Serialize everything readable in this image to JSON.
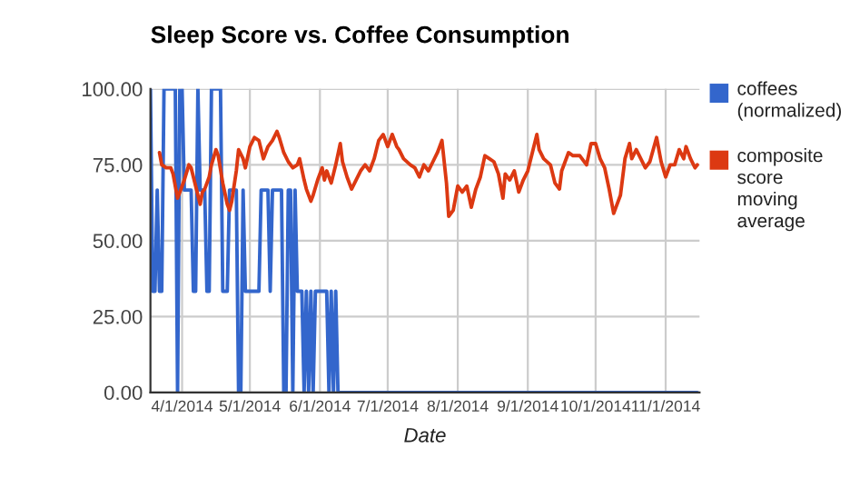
{
  "chart_data": {
    "type": "line",
    "title": "Sleep Score vs. Coffee Consumption",
    "xlabel": "Date",
    "xlim": [
      "2014-03-18",
      "2014-11-16"
    ],
    "xticks": [
      {
        "value": "2014-04-01",
        "label": "4/1/2014"
      },
      {
        "value": "2014-05-01",
        "label": "5/1/2014"
      },
      {
        "value": "2014-06-01",
        "label": "6/1/2014"
      },
      {
        "value": "2014-07-01",
        "label": "7/1/2014"
      },
      {
        "value": "2014-08-01",
        "label": "8/1/2014"
      },
      {
        "value": "2014-09-01",
        "label": "9/1/2014"
      },
      {
        "value": "2014-10-01",
        "label": "10/1/2014"
      },
      {
        "value": "2014-11-01",
        "label": "11/1/2014"
      }
    ],
    "ylim": [
      0,
      100
    ],
    "yticks": [
      {
        "value": 0,
        "label": "0.00"
      },
      {
        "value": 25,
        "label": "25.00"
      },
      {
        "value": 50,
        "label": "50.00"
      },
      {
        "value": 75,
        "label": "75.00"
      },
      {
        "value": 100,
        "label": "100.00"
      }
    ],
    "grid": true,
    "legend": "right",
    "marker": "none",
    "line_style": "solid",
    "series": [
      {
        "name": "coffees (normalized)",
        "color": "#3366cc",
        "x": [
          "2014-03-18",
          "2014-03-19",
          "2014-03-20",
          "2014-03-21",
          "2014-03-22",
          "2014-03-23",
          "2014-03-24",
          "2014-03-25",
          "2014-03-26",
          "2014-03-27",
          "2014-03-28",
          "2014-03-29",
          "2014-03-30",
          "2014-03-31",
          "2014-04-01",
          "2014-04-02",
          "2014-04-03",
          "2014-04-04",
          "2014-04-05",
          "2014-04-06",
          "2014-04-07",
          "2014-04-08",
          "2014-04-09",
          "2014-04-10",
          "2014-04-11",
          "2014-04-12",
          "2014-04-13",
          "2014-04-14",
          "2014-04-15",
          "2014-04-16",
          "2014-04-17",
          "2014-04-18",
          "2014-04-19",
          "2014-04-20",
          "2014-04-21",
          "2014-04-22",
          "2014-04-23",
          "2014-04-24",
          "2014-04-25",
          "2014-04-26",
          "2014-04-27",
          "2014-04-28",
          "2014-04-29",
          "2014-04-30",
          "2014-05-01",
          "2014-05-02",
          "2014-05-03",
          "2014-05-04",
          "2014-05-05",
          "2014-05-06",
          "2014-05-07",
          "2014-05-08",
          "2014-05-09",
          "2014-05-10",
          "2014-05-11",
          "2014-05-12",
          "2014-05-13",
          "2014-05-14",
          "2014-05-15",
          "2014-05-16",
          "2014-05-17",
          "2014-05-18",
          "2014-05-19",
          "2014-05-20",
          "2014-05-21",
          "2014-05-22",
          "2014-05-23",
          "2014-05-24",
          "2014-05-25",
          "2014-05-26",
          "2014-05-27",
          "2014-05-28",
          "2014-05-29",
          "2014-05-30",
          "2014-05-31",
          "2014-06-01",
          "2014-06-02",
          "2014-06-03",
          "2014-06-04",
          "2014-06-05",
          "2014-06-06",
          "2014-06-07",
          "2014-06-08",
          "2014-06-09",
          "2014-11-15"
        ],
        "values": [
          100,
          33.33,
          33.33,
          66.67,
          33.33,
          33.33,
          100,
          100,
          100,
          100,
          100,
          100,
          0,
          100,
          100,
          66.67,
          66.67,
          66.67,
          66.67,
          33.33,
          33.33,
          100,
          66.67,
          66.67,
          66.67,
          33.33,
          33.33,
          100,
          100,
          100,
          100,
          100,
          33.33,
          33.33,
          33.33,
          66.67,
          66.67,
          66.67,
          66.67,
          0,
          0,
          66.67,
          33.33,
          33.33,
          33.33,
          33.33,
          33.33,
          33.33,
          33.33,
          66.67,
          66.67,
          66.67,
          66.67,
          33.33,
          66.67,
          66.67,
          66.67,
          66.67,
          66.67,
          0,
          0,
          66.67,
          66.67,
          0,
          66.67,
          33.33,
          33.33,
          33.33,
          0,
          33.33,
          0,
          33.33,
          0,
          33.33,
          33.33,
          33.33,
          33.33,
          33.33,
          33.33,
          0,
          33.33,
          0,
          33.33,
          0,
          0
        ]
      },
      {
        "name": "composite score moving average",
        "color": "#dc3912",
        "x": [
          "2014-03-22",
          "2014-03-23",
          "2014-03-25",
          "2014-03-27",
          "2014-03-28",
          "2014-03-30",
          "2014-04-01",
          "2014-04-02",
          "2014-04-04",
          "2014-04-05",
          "2014-04-07",
          "2014-04-09",
          "2014-04-10",
          "2014-04-11",
          "2014-04-13",
          "2014-04-14",
          "2014-04-16",
          "2014-04-17",
          "2014-04-19",
          "2014-04-21",
          "2014-04-22",
          "2014-04-23",
          "2014-04-25",
          "2014-04-26",
          "2014-04-28",
          "2014-04-29",
          "2014-05-01",
          "2014-05-03",
          "2014-05-05",
          "2014-05-07",
          "2014-05-09",
          "2014-05-11",
          "2014-05-13",
          "2014-05-14",
          "2014-05-16",
          "2014-05-18",
          "2014-05-20",
          "2014-05-22",
          "2014-05-23",
          "2014-05-25",
          "2014-05-26",
          "2014-05-28",
          "2014-05-29",
          "2014-05-31",
          "2014-06-02",
          "2014-06-03",
          "2014-06-04",
          "2014-06-06",
          "2014-06-08",
          "2014-06-10",
          "2014-06-11",
          "2014-06-13",
          "2014-06-15",
          "2014-06-17",
          "2014-06-19",
          "2014-06-21",
          "2014-06-23",
          "2014-06-25",
          "2014-06-27",
          "2014-06-29",
          "2014-07-01",
          "2014-07-03",
          "2014-07-05",
          "2014-07-06",
          "2014-07-08",
          "2014-07-11",
          "2014-07-13",
          "2014-07-15",
          "2014-07-17",
          "2014-07-19",
          "2014-07-21",
          "2014-07-23",
          "2014-07-25",
          "2014-07-27",
          "2014-07-28",
          "2014-07-30",
          "2014-08-01",
          "2014-08-03",
          "2014-08-05",
          "2014-08-07",
          "2014-08-09",
          "2014-08-11",
          "2014-08-13",
          "2014-08-15",
          "2014-08-17",
          "2014-08-19",
          "2014-08-21",
          "2014-08-22",
          "2014-08-24",
          "2014-08-26",
          "2014-08-28",
          "2014-08-30",
          "2014-09-01",
          "2014-09-03",
          "2014-09-05",
          "2014-09-06",
          "2014-09-08",
          "2014-09-11",
          "2014-09-13",
          "2014-09-15",
          "2014-09-16",
          "2014-09-19",
          "2014-09-21",
          "2014-09-24",
          "2014-09-27",
          "2014-09-29",
          "2014-10-01",
          "2014-10-03",
          "2014-10-05",
          "2014-10-07",
          "2014-10-09",
          "2014-10-10",
          "2014-10-12",
          "2014-10-14",
          "2014-10-16",
          "2014-10-17",
          "2014-10-19",
          "2014-10-21",
          "2014-10-23",
          "2014-10-25",
          "2014-10-28",
          "2014-10-30",
          "2014-11-01",
          "2014-11-03",
          "2014-11-05",
          "2014-11-07",
          "2014-11-09",
          "2014-11-10",
          "2014-11-12",
          "2014-11-14",
          "2014-11-15"
        ],
        "values": [
          79,
          75,
          74,
          74,
          72,
          64,
          68,
          70,
          75,
          74,
          68,
          62,
          66,
          67,
          71,
          75,
          80,
          78,
          69,
          62,
          60,
          63,
          73,
          80,
          77,
          74,
          81,
          84,
          83,
          77,
          81,
          83,
          86,
          84,
          79,
          76,
          74,
          75,
          77,
          70,
          67,
          63,
          65,
          70,
          74,
          70,
          73,
          69,
          75,
          82,
          76,
          71,
          67,
          70,
          73,
          75,
          73,
          77,
          83,
          85,
          81,
          85,
          81,
          80,
          77,
          75,
          74,
          71,
          75,
          73,
          76,
          79,
          83,
          69,
          58,
          60,
          68,
          66,
          68,
          61,
          67,
          71,
          78,
          77,
          76,
          72,
          64,
          72,
          70,
          73,
          66,
          70,
          73,
          79,
          85,
          80,
          77,
          75,
          69,
          67,
          73,
          79,
          78,
          78,
          75,
          82,
          82,
          77,
          74,
          67,
          59,
          61,
          65,
          77,
          82,
          77,
          80,
          77,
          74,
          76,
          84,
          76,
          71,
          75,
          75,
          80,
          77,
          81,
          77,
          74,
          75
        ]
      }
    ]
  }
}
